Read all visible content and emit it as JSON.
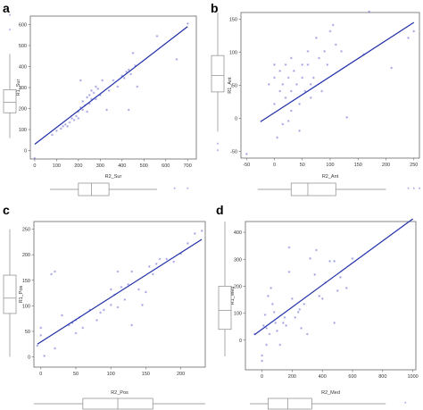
{
  "colors": {
    "point": "#7b7bd6",
    "line": "#1f2fa8",
    "frame": "#666666",
    "box": "#888888"
  },
  "chart_data": [
    {
      "type": "scatter",
      "panel": "a",
      "xlabel": "R2_Sur",
      "ylabel": "R1_Sur",
      "xlim": [
        -20,
        740
      ],
      "ylim": [
        -40,
        640
      ],
      "xticks": [
        0,
        100,
        200,
        300,
        400,
        500,
        600,
        700
      ],
      "yticks": [
        0,
        100,
        200,
        300,
        400,
        500,
        600
      ],
      "fit": [
        [
          0,
          30
        ],
        [
          700,
          590
        ]
      ],
      "points": [
        [
          0,
          -40
        ],
        [
          80,
          70
        ],
        [
          100,
          90
        ],
        [
          120,
          100
        ],
        [
          130,
          110
        ],
        [
          140,
          120
        ],
        [
          150,
          110
        ],
        [
          160,
          130
        ],
        [
          170,
          150
        ],
        [
          180,
          140
        ],
        [
          190,
          160
        ],
        [
          200,
          180
        ],
        [
          200,
          150
        ],
        [
          210,
          200
        ],
        [
          220,
          190
        ],
        [
          220,
          230
        ],
        [
          230,
          210
        ],
        [
          240,
          180
        ],
        [
          240,
          250
        ],
        [
          250,
          220
        ],
        [
          250,
          260
        ],
        [
          260,
          240
        ],
        [
          260,
          280
        ],
        [
          270,
          270
        ],
        [
          280,
          240
        ],
        [
          280,
          300
        ],
        [
          290,
          290
        ],
        [
          300,
          260
        ],
        [
          310,
          330
        ],
        [
          330,
          190
        ],
        [
          340,
          280
        ],
        [
          360,
          330
        ],
        [
          380,
          300
        ],
        [
          400,
          350
        ],
        [
          410,
          340
        ],
        [
          420,
          370
        ],
        [
          430,
          380
        ],
        [
          440,
          360
        ],
        [
          430,
          190
        ],
        [
          450,
          460
        ],
        [
          470,
          300
        ],
        [
          460,
          400
        ],
        [
          560,
          540
        ],
        [
          650,
          430
        ],
        [
          700,
          600
        ],
        [
          210,
          330
        ]
      ],
      "box_x": {
        "min": 70,
        "q1": 200,
        "median": 260,
        "q3": 340,
        "max": 560,
        "outliers": [
          640,
          700
        ]
      },
      "box_y": {
        "min": 60,
        "q1": 180,
        "median": 230,
        "q3": 290,
        "max": 460,
        "outliers": [
          570,
          640
        ]
      }
    },
    {
      "type": "scatter",
      "panel": "b",
      "xlabel": "R2_Ant",
      "ylabel": "R1_Ant",
      "xlim": [
        -60,
        260
      ],
      "ylim": [
        -60,
        160
      ],
      "xticks": [
        -50,
        0,
        50,
        100,
        150,
        200,
        250
      ],
      "yticks": [
        -50,
        0,
        50,
        100,
        150
      ],
      "fit": [
        [
          -25,
          -5
        ],
        [
          250,
          145
        ]
      ],
      "points": [
        [
          -50,
          -55
        ],
        [
          -10,
          50
        ],
        [
          0,
          60
        ],
        [
          0,
          80
        ],
        [
          0,
          20
        ],
        [
          5,
          -30
        ],
        [
          10,
          40
        ],
        [
          10,
          70
        ],
        [
          15,
          50
        ],
        [
          15,
          -10
        ],
        [
          20,
          80
        ],
        [
          20,
          30
        ],
        [
          25,
          60
        ],
        [
          30,
          40
        ],
        [
          30,
          90
        ],
        [
          30,
          10
        ],
        [
          35,
          70
        ],
        [
          40,
          50
        ],
        [
          45,
          20
        ],
        [
          45,
          -20
        ],
        [
          50,
          80
        ],
        [
          50,
          60
        ],
        [
          55,
          40
        ],
        [
          60,
          100
        ],
        [
          60,
          80
        ],
        [
          65,
          50
        ],
        [
          70,
          60
        ],
        [
          75,
          120
        ],
        [
          80,
          90
        ],
        [
          85,
          40
        ],
        [
          90,
          100
        ],
        [
          95,
          80
        ],
        [
          100,
          130
        ],
        [
          105,
          140
        ],
        [
          110,
          110
        ],
        [
          120,
          100
        ],
        [
          130,
          0
        ],
        [
          160,
          95
        ],
        [
          170,
          160
        ],
        [
          210,
          75
        ],
        [
          240,
          120
        ],
        [
          250,
          130
        ],
        [
          25,
          -5
        ],
        [
          65,
          30
        ]
      ],
      "box_x": {
        "min": -30,
        "q1": 30,
        "median": 60,
        "q3": 110,
        "max": 200,
        "outliers": [
          240,
          250,
          260
        ]
      },
      "box_y": {
        "min": -20,
        "q1": 40,
        "median": 65,
        "q3": 95,
        "max": 160,
        "outliers": [
          -40,
          -50
        ]
      }
    },
    {
      "type": "scatter",
      "panel": "c",
      "xlabel": "R2_Pos",
      "ylabel": "R1_Pos",
      "xlim": [
        -10,
        235
      ],
      "ylim": [
        -20,
        265
      ],
      "xticks": [
        0,
        50,
        100,
        150,
        200
      ],
      "yticks": [
        0,
        50,
        100,
        150,
        200,
        250
      ],
      "fit": [
        [
          -5,
          25
        ],
        [
          230,
          230
        ]
      ],
      "points": [
        [
          -5,
          20
        ],
        [
          0,
          55
        ],
        [
          0,
          40
        ],
        [
          5,
          0
        ],
        [
          15,
          160
        ],
        [
          20,
          165
        ],
        [
          20,
          15
        ],
        [
          30,
          80
        ],
        [
          40,
          60
        ],
        [
          45,
          65
        ],
        [
          50,
          70
        ],
        [
          50,
          45
        ],
        [
          55,
          75
        ],
        [
          60,
          55
        ],
        [
          70,
          90
        ],
        [
          80,
          70
        ],
        [
          85,
          85
        ],
        [
          90,
          90
        ],
        [
          100,
          100
        ],
        [
          100,
          130
        ],
        [
          105,
          120
        ],
        [
          110,
          95
        ],
        [
          115,
          135
        ],
        [
          120,
          110
        ],
        [
          125,
          140
        ],
        [
          130,
          165
        ],
        [
          140,
          130
        ],
        [
          145,
          100
        ],
        [
          150,
          125
        ],
        [
          155,
          175
        ],
        [
          160,
          160
        ],
        [
          165,
          180
        ],
        [
          170,
          190
        ],
        [
          180,
          190
        ],
        [
          190,
          185
        ],
        [
          200,
          200
        ],
        [
          210,
          220
        ],
        [
          220,
          240
        ],
        [
          230,
          245
        ],
        [
          110,
          165
        ],
        [
          130,
          60
        ]
      ],
      "box_x": {
        "min": -10,
        "q1": 60,
        "median": 110,
        "q3": 160,
        "max": 235,
        "outliers": []
      },
      "box_y": {
        "min": 0,
        "q1": 85,
        "median": 115,
        "q3": 160,
        "max": 250,
        "outliers": []
      }
    },
    {
      "type": "scatter",
      "panel": "d",
      "xlabel": "R2_Med",
      "ylabel": "R1_Med",
      "xlim": [
        -110,
        1020
      ],
      "ylim": [
        -110,
        440
      ],
      "xticks": [
        0,
        200,
        400,
        600,
        800,
        1000
      ],
      "yticks": [
        0,
        100,
        200,
        300,
        400
      ],
      "fit": [
        [
          -50,
          20
        ],
        [
          1000,
          450
        ]
      ],
      "points": [
        [
          -50,
          20
        ],
        [
          0,
          -60
        ],
        [
          0,
          -80
        ],
        [
          10,
          50
        ],
        [
          20,
          90
        ],
        [
          30,
          40
        ],
        [
          40,
          160
        ],
        [
          50,
          20
        ],
        [
          60,
          190
        ],
        [
          70,
          130
        ],
        [
          80,
          100
        ],
        [
          90,
          60
        ],
        [
          100,
          30
        ],
        [
          120,
          -20
        ],
        [
          150,
          80
        ],
        [
          160,
          50
        ],
        [
          180,
          250
        ],
        [
          180,
          340
        ],
        [
          200,
          150
        ],
        [
          220,
          80
        ],
        [
          240,
          100
        ],
        [
          250,
          110
        ],
        [
          260,
          40
        ],
        [
          280,
          130
        ],
        [
          300,
          20
        ],
        [
          320,
          300
        ],
        [
          350,
          240
        ],
        [
          360,
          330
        ],
        [
          380,
          160
        ],
        [
          400,
          150
        ],
        [
          420,
          210
        ],
        [
          450,
          290
        ],
        [
          480,
          290
        ],
        [
          500,
          180
        ],
        [
          520,
          230
        ],
        [
          560,
          190
        ],
        [
          600,
          300
        ],
        [
          480,
          60
        ],
        [
          30,
          -20
        ],
        [
          140,
          60
        ]
      ],
      "box_x": {
        "min": -80,
        "q1": 40,
        "median": 170,
        "q3": 330,
        "max": 820,
        "outliers": [
          950
        ]
      },
      "box_y": {
        "min": -60,
        "q1": 40,
        "median": 110,
        "q3": 200,
        "max": 440,
        "outliers": []
      }
    }
  ]
}
